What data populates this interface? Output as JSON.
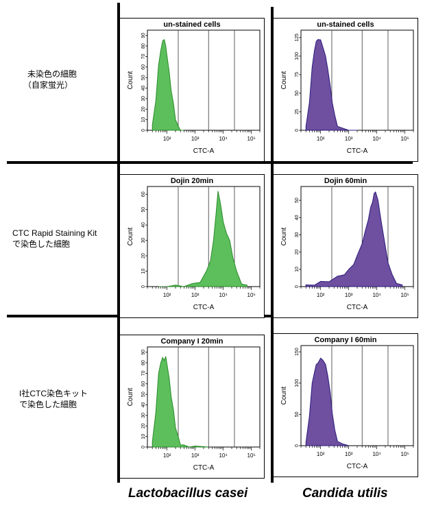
{
  "rows": [
    {
      "label_lines": [
        "未染色の細胞",
        "（自家蛍光）"
      ]
    },
    {
      "label_lines": [
        "CTC Rapid Staining Kit",
        "で染色した細胞"
      ]
    },
    {
      "label_lines": [
        "I社CTC染色キット",
        "で染色した細胞"
      ]
    }
  ],
  "columns": [
    {
      "label": "Lactobacillus casei",
      "color": "#5cbf5c",
      "stroke": "#2a8a2a"
    },
    {
      "label": "Candida utilis",
      "color": "#6e4fa0",
      "stroke": "#2a1a7a"
    }
  ],
  "chart_data": [
    {
      "type": "area",
      "panel": "row1-col1",
      "title": "un-stained cells",
      "xlabel": "CTC-A",
      "ylabel": "Count",
      "xscale": "log",
      "xlim": [
        20,
        200000
      ],
      "ylim": [
        0,
        95
      ],
      "yticks": [
        0,
        10,
        20,
        30,
        40,
        50,
        60,
        70,
        80,
        90
      ],
      "xticks": [
        100,
        1000,
        10000,
        100000
      ],
      "xtick_labels": [
        "10²",
        "10³",
        "10⁴",
        "10⁵"
      ],
      "gates": [
        250,
        3000,
        25000
      ],
      "series": [
        {
          "x": [
            30,
            40,
            50,
            60,
            70,
            80,
            90,
            100,
            120,
            140,
            170,
            200,
            250,
            300,
            400
          ],
          "y": [
            5,
            30,
            62,
            78,
            85,
            88,
            80,
            72,
            55,
            40,
            25,
            12,
            4,
            1,
            0
          ]
        }
      ]
    },
    {
      "type": "area",
      "panel": "row1-col2",
      "title": "un-stained cells",
      "xlabel": "CTC-A",
      "ylabel": "Count",
      "xscale": "log",
      "xlim": [
        20,
        200000
      ],
      "ylim": [
        0,
        135
      ],
      "yticks": [
        0,
        25,
        50,
        75,
        100,
        125
      ],
      "xticks": [
        100,
        1000,
        10000,
        100000
      ],
      "xtick_labels": [
        "10²",
        "10³",
        "10⁴",
        "10⁵"
      ],
      "gates": [
        250,
        3000,
        25000
      ],
      "series": [
        {
          "x": [
            30,
            40,
            50,
            60,
            70,
            80,
            100,
            120,
            150,
            180,
            220,
            260,
            320,
            400,
            600,
            1000,
            2000
          ],
          "y": [
            5,
            40,
            85,
            110,
            120,
            125,
            122,
            115,
            100,
            85,
            60,
            40,
            20,
            8,
            3,
            1,
            0
          ]
        }
      ]
    },
    {
      "type": "area",
      "panel": "row2-col1",
      "title": "Dojin 20min",
      "xlabel": "CTC-A",
      "ylabel": "Count",
      "xscale": "log",
      "xlim": [
        20,
        200000
      ],
      "ylim": [
        0,
        65
      ],
      "yticks": [
        0,
        10,
        20,
        30,
        40,
        50,
        60
      ],
      "xticks": [
        100,
        1000,
        10000,
        100000
      ],
      "xtick_labels": [
        "10²",
        "10³",
        "10⁴",
        "10⁵"
      ],
      "gates": [
        250,
        3000,
        25000
      ],
      "series": [
        {
          "x": [
            50,
            100,
            200,
            400,
            800,
            1500,
            2500,
            3500,
            4500,
            5500,
            6500,
            8000,
            10000,
            13000,
            17000,
            22000,
            30000,
            45000,
            70000
          ],
          "y": [
            0,
            0,
            1,
            1,
            2,
            4,
            10,
            18,
            30,
            48,
            62,
            55,
            42,
            36,
            30,
            20,
            10,
            3,
            1
          ]
        }
      ]
    },
    {
      "type": "area",
      "panel": "row2-col2",
      "title": "Dojin 60min",
      "xlabel": "CTC-A",
      "ylabel": "Count",
      "xscale": "log",
      "xlim": [
        20,
        200000
      ],
      "ylim": [
        0,
        58
      ],
      "yticks": [
        0,
        10,
        20,
        30,
        40,
        50
      ],
      "xticks": [
        100,
        1000,
        10000,
        100000
      ],
      "xtick_labels": [
        "10²",
        "10³",
        "10⁴",
        "10⁵"
      ],
      "gates": [
        250,
        3000,
        25000
      ],
      "series": [
        {
          "x": [
            30,
            60,
            100,
            200,
            400,
            700,
            1000,
            1500,
            2000,
            3000,
            4000,
            5000,
            6000,
            7000,
            8000,
            9000,
            11000,
            14000,
            18000,
            25000,
            35000,
            50000,
            80000
          ],
          "y": [
            1,
            2,
            3,
            4,
            6,
            8,
            10,
            14,
            18,
            26,
            33,
            40,
            46,
            50,
            54,
            56,
            50,
            40,
            28,
            15,
            7,
            3,
            1
          ]
        }
      ]
    },
    {
      "type": "area",
      "panel": "row3-col1",
      "title": "Company I 20min",
      "xlabel": "CTC-A",
      "ylabel": "Count",
      "xscale": "log",
      "xlim": [
        20,
        200000
      ],
      "ylim": [
        0,
        95
      ],
      "yticks": [
        0,
        10,
        20,
        30,
        40,
        50,
        60,
        70,
        80,
        90
      ],
      "xticks": [
        100,
        1000,
        10000,
        100000
      ],
      "xtick_labels": [
        "10²",
        "10³",
        "10⁴",
        "10⁵"
      ],
      "gates": [
        250,
        3000,
        25000
      ],
      "series": [
        {
          "x": [
            30,
            40,
            50,
            60,
            70,
            80,
            90,
            100,
            120,
            140,
            170,
            200,
            250,
            300,
            400,
            600,
            1000,
            3000
          ],
          "y": [
            5,
            35,
            70,
            82,
            85,
            84,
            86,
            80,
            65,
            50,
            35,
            20,
            10,
            4,
            2,
            1,
            1,
            1
          ]
        }
      ]
    },
    {
      "type": "area",
      "panel": "row3-col2",
      "title": "Company I 60min",
      "xlabel": "CTC-A",
      "ylabel": "Count",
      "xscale": "log",
      "xlim": [
        20,
        200000
      ],
      "ylim": [
        0,
        160
      ],
      "yticks": [
        0,
        50,
        100,
        150
      ],
      "xticks": [
        100,
        1000,
        10000,
        100000
      ],
      "xtick_labels": [
        "10²",
        "10³",
        "10⁴",
        "10⁵"
      ],
      "gates": [
        250,
        3000,
        25000
      ],
      "series": [
        {
          "x": [
            30,
            40,
            50,
            60,
            70,
            80,
            100,
            120,
            150,
            180,
            220,
            260,
            320,
            400,
            600,
            1000
          ],
          "y": [
            5,
            50,
            100,
            120,
            130,
            135,
            140,
            140,
            130,
            115,
            85,
            55,
            25,
            10,
            3,
            0
          ]
        }
      ]
    }
  ]
}
